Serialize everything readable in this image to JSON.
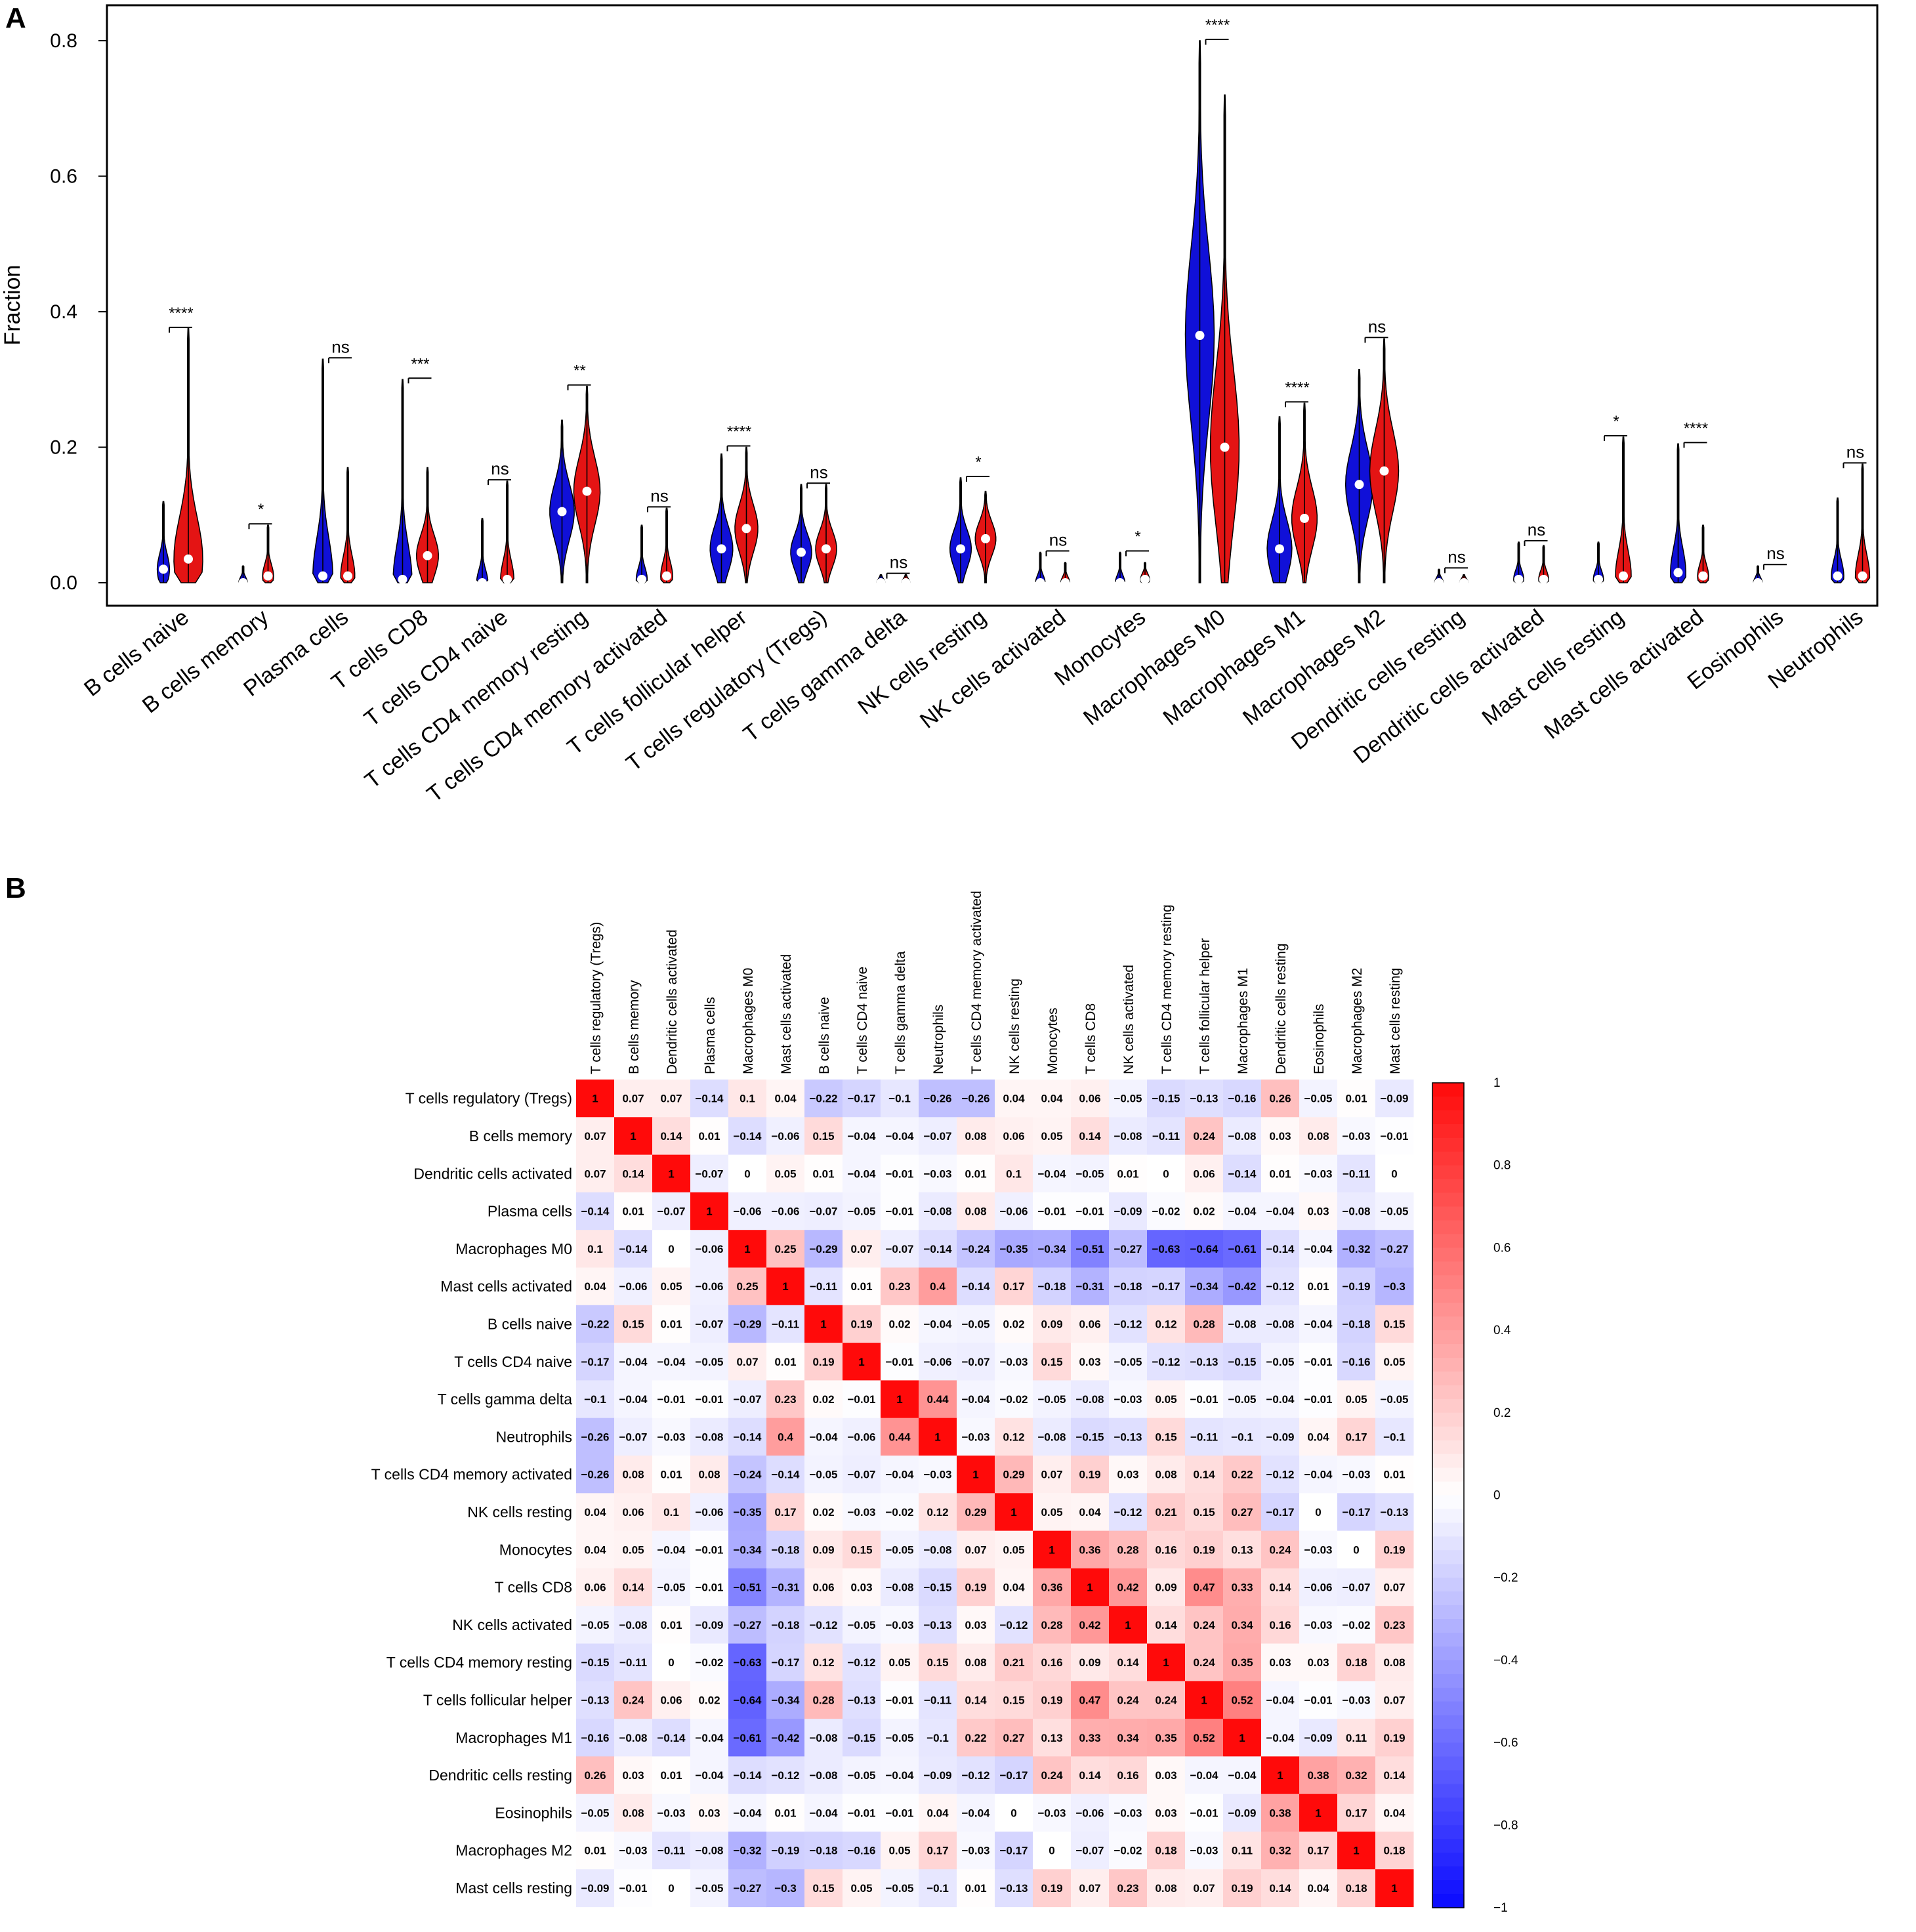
{
  "panels": {
    "a": {
      "letter": "A"
    },
    "b": {
      "letter": "B"
    }
  },
  "colors": {
    "group1": "#1010d8",
    "group2": "#e41414",
    "low": "#0a0af0",
    "mid": "#ffffff",
    "high": "#f00a0a"
  },
  "chart_data": [
    {
      "type": "violin",
      "title": "",
      "ylabel": "Fraction",
      "xlabel": "",
      "ylim": [
        0,
        0.8
      ],
      "yticks": [
        "0.0",
        "0.2",
        "0.4",
        "0.6",
        "0.8"
      ],
      "categories": [
        "B cells naive",
        "B cells memory",
        "Plasma cells",
        "T cells CD8",
        "T cells CD4 naive",
        "T cells CD4 memory resting",
        "T cells CD4 memory activated",
        "T cells follicular helper",
        "T cells regulatory (Tregs)",
        "T cells gamma delta",
        "NK cells resting",
        "NK cells activated",
        "Monocytes",
        "Macrophages M0",
        "Macrophages M1",
        "Macrophages M2",
        "Dendritic cells resting",
        "Dendritic cells activated",
        "Mast cells resting",
        "Mast cells activated",
        "Eosinophils",
        "Neutrophils"
      ],
      "significance": [
        "****",
        "*",
        "ns",
        "***",
        "ns",
        "**",
        "ns",
        "****",
        "ns",
        "ns",
        "*",
        "ns",
        "*",
        "****",
        "****",
        "ns",
        "ns",
        "ns",
        "*",
        "****",
        "ns",
        "ns"
      ],
      "series": [
        {
          "name": "group 1",
          "color": "#1010d8",
          "max": [
            0.12,
            0.025,
            0.33,
            0.3,
            0.095,
            0.24,
            0.085,
            0.19,
            0.145,
            0.012,
            0.155,
            0.045,
            0.045,
            0.8,
            0.245,
            0.315,
            0.02,
            0.06,
            0.06,
            0.205,
            0.025,
            0.125
          ],
          "median": [
            0.02,
            0.0,
            0.01,
            0.005,
            0.0,
            0.105,
            0.005,
            0.05,
            0.045,
            0.0,
            0.05,
            0.0,
            0.0,
            0.365,
            0.05,
            0.145,
            0.0,
            0.005,
            0.005,
            0.015,
            0.0,
            0.01
          ]
        },
        {
          "name": "group 2",
          "color": "#e41414",
          "max": [
            0.375,
            0.085,
            0.17,
            0.17,
            0.15,
            0.29,
            0.11,
            0.2,
            0.145,
            0.012,
            0.135,
            0.03,
            0.03,
            0.72,
            0.265,
            0.36,
            0.012,
            0.055,
            0.215,
            0.085,
            0.0,
            0.175
          ],
          "median": [
            0.035,
            0.01,
            0.01,
            0.04,
            0.005,
            0.135,
            0.01,
            0.08,
            0.05,
            0.0,
            0.065,
            0.0,
            0.005,
            0.2,
            0.095,
            0.165,
            0.0,
            0.005,
            0.01,
            0.01,
            0.0,
            0.01
          ]
        }
      ]
    },
    {
      "type": "heatmap",
      "title": "",
      "row_labels": [
        "T cells regulatory (Tregs)",
        "B cells memory",
        "Dendritic cells activated",
        "Plasma cells",
        "Macrophages M0",
        "Mast cells activated",
        "B cells naive",
        "T cells CD4 naive",
        "T cells gamma delta",
        "Neutrophils",
        "T cells CD4 memory activated",
        "NK cells resting",
        "Monocytes",
        "T cells CD8",
        "NK cells activated",
        "T cells CD4 memory resting",
        "T cells follicular helper",
        "Macrophages M1",
        "Dendritic cells resting",
        "Eosinophils",
        "Macrophages M2",
        "Mast cells resting"
      ],
      "col_labels": [
        "T cells regulatory (Tregs)",
        "B cells memory",
        "Dendritic cells activated",
        "Plasma cells",
        "Macrophages M0",
        "Mast cells activated",
        "B cells naive",
        "T cells CD4 naive",
        "T cells gamma delta",
        "Neutrophils",
        "T cells CD4 memory activated",
        "NK cells resting",
        "Monocytes",
        "T cells CD8",
        "NK cells activated",
        "T cells CD4 memory resting",
        "T cells follicular helper",
        "Macrophages M1",
        "Dendritic cells resting",
        "Eosinophils",
        "Macrophages M2",
        "Mast cells resting"
      ],
      "values": [
        [
          1,
          0.07,
          0.07,
          -0.14,
          0.1,
          0.04,
          -0.22,
          -0.17,
          -0.1,
          -0.26,
          -0.26,
          0.04,
          0.04,
          0.06,
          -0.05,
          -0.15,
          -0.13,
          -0.16,
          0.26,
          -0.05,
          0.01,
          -0.09
        ],
        [
          0.07,
          1,
          0.14,
          0.01,
          -0.14,
          -0.06,
          0.15,
          -0.04,
          -0.04,
          -0.07,
          0.08,
          0.06,
          0.05,
          0.14,
          -0.08,
          -0.11,
          0.24,
          -0.08,
          0.03,
          0.08,
          -0.03,
          -0.01
        ],
        [
          0.07,
          0.14,
          1,
          -0.07,
          0,
          0.05,
          0.01,
          -0.04,
          -0.01,
          -0.03,
          0.01,
          0.1,
          -0.04,
          -0.05,
          0.01,
          0,
          0.06,
          -0.14,
          0.01,
          -0.03,
          -0.11,
          0
        ],
        [
          -0.14,
          0.01,
          -0.07,
          1,
          -0.06,
          -0.06,
          -0.07,
          -0.05,
          -0.01,
          -0.08,
          0.08,
          -0.06,
          -0.01,
          -0.01,
          -0.09,
          -0.02,
          0.02,
          -0.04,
          -0.04,
          0.03,
          -0.08,
          -0.05
        ],
        [
          0.1,
          -0.14,
          0,
          -0.06,
          1,
          0.25,
          -0.29,
          0.07,
          -0.07,
          -0.14,
          -0.24,
          -0.35,
          -0.34,
          -0.51,
          -0.27,
          -0.63,
          -0.64,
          -0.61,
          -0.14,
          -0.04,
          -0.32,
          -0.27
        ],
        [
          0.04,
          -0.06,
          0.05,
          -0.06,
          0.25,
          1,
          -0.11,
          0.01,
          0.23,
          0.4,
          -0.14,
          0.17,
          -0.18,
          -0.31,
          -0.18,
          -0.17,
          -0.34,
          -0.42,
          -0.12,
          0.01,
          -0.19,
          -0.3
        ],
        [
          -0.22,
          0.15,
          0.01,
          -0.07,
          -0.29,
          -0.11,
          1,
          0.19,
          0.02,
          -0.04,
          -0.05,
          0.02,
          0.09,
          0.06,
          -0.12,
          0.12,
          0.28,
          -0.08,
          -0.08,
          -0.04,
          -0.18,
          0.15
        ],
        [
          -0.17,
          -0.04,
          -0.04,
          -0.05,
          0.07,
          0.01,
          0.19,
          1,
          -0.01,
          -0.06,
          -0.07,
          -0.03,
          0.15,
          0.03,
          -0.05,
          -0.12,
          -0.13,
          -0.15,
          -0.05,
          -0.01,
          -0.16,
          0.05
        ],
        [
          -0.1,
          -0.04,
          -0.01,
          -0.01,
          -0.07,
          0.23,
          0.02,
          -0.01,
          1,
          0.44,
          -0.04,
          -0.02,
          -0.05,
          -0.08,
          -0.03,
          0.05,
          -0.01,
          -0.05,
          -0.04,
          -0.01,
          0.05,
          -0.05
        ],
        [
          -0.26,
          -0.07,
          -0.03,
          -0.08,
          -0.14,
          0.4,
          -0.04,
          -0.06,
          0.44,
          1,
          -0.03,
          0.12,
          -0.08,
          -0.15,
          -0.13,
          0.15,
          -0.11,
          -0.1,
          -0.09,
          0.04,
          0.17,
          -0.1
        ],
        [
          -0.26,
          0.08,
          0.01,
          0.08,
          -0.24,
          -0.14,
          -0.05,
          -0.07,
          -0.04,
          -0.03,
          1,
          0.29,
          0.07,
          0.19,
          0.03,
          0.08,
          0.14,
          0.22,
          -0.12,
          -0.04,
          -0.03,
          0.01
        ],
        [
          0.04,
          0.06,
          0.1,
          -0.06,
          -0.35,
          0.17,
          0.02,
          -0.03,
          -0.02,
          0.12,
          0.29,
          1,
          0.05,
          0.04,
          -0.12,
          0.21,
          0.15,
          0.27,
          -0.17,
          0,
          -0.17,
          -0.13
        ],
        [
          0.04,
          0.05,
          -0.04,
          -0.01,
          -0.34,
          -0.18,
          0.09,
          0.15,
          -0.05,
          -0.08,
          0.07,
          0.05,
          1,
          0.36,
          0.28,
          0.16,
          0.19,
          0.13,
          0.24,
          -0.03,
          0,
          0.19
        ],
        [
          0.06,
          0.14,
          -0.05,
          -0.01,
          -0.51,
          -0.31,
          0.06,
          0.03,
          -0.08,
          -0.15,
          0.19,
          0.04,
          0.36,
          1,
          0.42,
          0.09,
          0.47,
          0.33,
          0.14,
          -0.06,
          -0.07,
          0.07
        ],
        [
          -0.05,
          -0.08,
          0.01,
          -0.09,
          -0.27,
          -0.18,
          -0.12,
          -0.05,
          -0.03,
          -0.13,
          0.03,
          -0.12,
          0.28,
          0.42,
          1,
          0.14,
          0.24,
          0.34,
          0.16,
          -0.03,
          -0.02,
          0.23
        ],
        [
          -0.15,
          -0.11,
          0,
          -0.02,
          -0.63,
          -0.17,
          0.12,
          -0.12,
          0.05,
          0.15,
          0.08,
          0.21,
          0.16,
          0.09,
          0.14,
          1,
          0.24,
          0.35,
          0.03,
          0.03,
          0.18,
          0.08
        ],
        [
          -0.13,
          0.24,
          0.06,
          0.02,
          -0.64,
          -0.34,
          0.28,
          -0.13,
          -0.01,
          -0.11,
          0.14,
          0.15,
          0.19,
          0.47,
          0.24,
          0.24,
          1,
          0.52,
          -0.04,
          -0.01,
          -0.03,
          0.07
        ],
        [
          -0.16,
          -0.08,
          -0.14,
          -0.04,
          -0.61,
          -0.42,
          -0.08,
          -0.15,
          -0.05,
          -0.1,
          0.22,
          0.27,
          0.13,
          0.33,
          0.34,
          0.35,
          0.52,
          1,
          -0.04,
          -0.09,
          0.11,
          0.19
        ],
        [
          0.26,
          0.03,
          0.01,
          -0.04,
          -0.14,
          -0.12,
          -0.08,
          -0.05,
          -0.04,
          -0.09,
          -0.12,
          -0.17,
          0.24,
          0.14,
          0.16,
          0.03,
          -0.04,
          -0.04,
          1,
          0.38,
          0.32,
          0.14
        ],
        [
          -0.05,
          0.08,
          -0.03,
          0.03,
          -0.04,
          0.01,
          -0.04,
          -0.01,
          -0.01,
          0.04,
          -0.04,
          0,
          -0.03,
          -0.06,
          -0.03,
          0.03,
          -0.01,
          -0.09,
          0.38,
          1,
          0.17,
          0.04
        ],
        [
          0.01,
          -0.03,
          -0.11,
          -0.08,
          -0.32,
          -0.19,
          -0.18,
          -0.16,
          0.05,
          0.17,
          -0.03,
          -0.17,
          0,
          -0.07,
          -0.02,
          0.18,
          -0.03,
          0.11,
          0.32,
          0.17,
          1,
          0.18
        ],
        [
          -0.09,
          -0.01,
          0,
          -0.05,
          -0.27,
          -0.3,
          0.15,
          0.05,
          -0.05,
          -0.1,
          0.01,
          -0.13,
          0.19,
          0.07,
          0.23,
          0.08,
          0.07,
          0.19,
          0.14,
          0.04,
          0.18,
          1
        ]
      ],
      "colorbar": {
        "range": [
          -1,
          1
        ],
        "ticks": [
          "1",
          "0.8",
          "0.6",
          "0.4",
          "0.2",
          "0",
          "−0.2",
          "−0.4",
          "−0.6",
          "−0.8",
          "−1"
        ]
      }
    }
  ]
}
